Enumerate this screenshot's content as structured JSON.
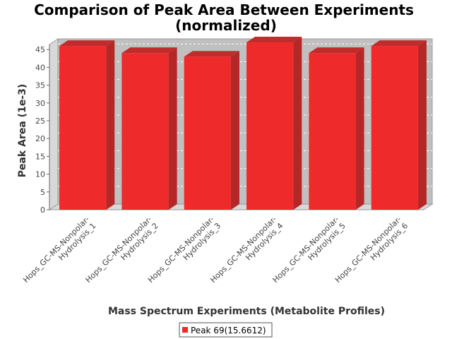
{
  "chart_data": {
    "type": "bar",
    "title": "Comparison of Peak Area Between Experiments",
    "subtitle": "(normalized)",
    "xlabel": "Mass Spectrum Experiments (Metabolite Profiles)",
    "ylabel": "Peak Area (1e-3)",
    "ylim": [
      0,
      48
    ],
    "yticks": [
      0,
      5,
      10,
      15,
      20,
      25,
      30,
      35,
      40,
      45
    ],
    "categories": [
      [
        "Hops_GC-MS-Nonpolar-",
        "Hydrolysis_1"
      ],
      [
        "Hops_GC-MS-Nonpolar-",
        "Hydrolysis_2"
      ],
      [
        "Hops_GC-MS-Nonpolar-",
        "Hydrolysis_3"
      ],
      [
        "Hops_GC-MS-Nonpolar-",
        "Hydrolysis_4"
      ],
      [
        "Hops_GC-MS-Nonpolar-",
        "Hydrolysis_5"
      ],
      [
        "Hops_GC-MS-Nonpolar-",
        "Hydrolysis_6"
      ]
    ],
    "series": [
      {
        "name": "Peak 69(15.6612)",
        "values": [
          46,
          44,
          43,
          47,
          44,
          46
        ],
        "color": "#ee2a2a"
      }
    ],
    "grid": true,
    "legend_position": "bottom",
    "plot_background": "#c0c0c0"
  }
}
